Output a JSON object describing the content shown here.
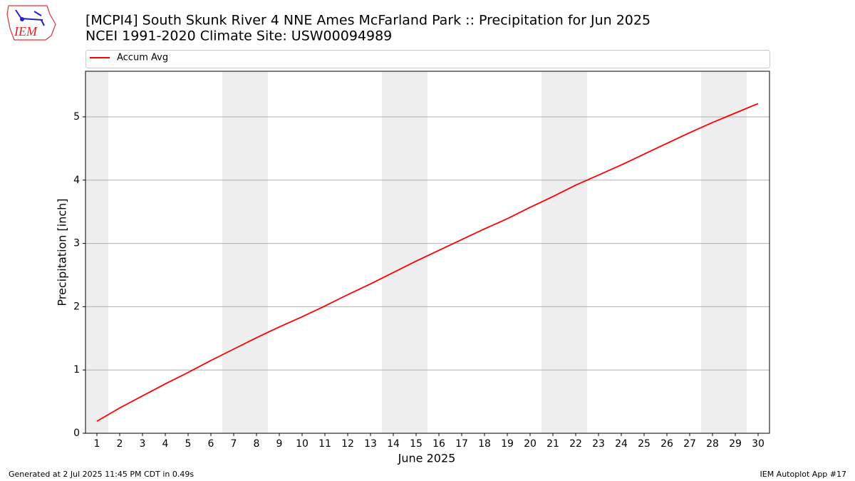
{
  "chart_data": {
    "type": "line",
    "title": "[MCPI4] South Skunk River 4 NNE Ames McFarland Park :: Precipitation for Jun 2025",
    "subtitle": "NCEI 1991-2020 Climate Site: USW00094989",
    "xlabel": "June 2025",
    "ylabel": "Precipitation [inch]",
    "x": [
      1,
      2,
      3,
      4,
      5,
      6,
      7,
      8,
      9,
      10,
      11,
      12,
      13,
      14,
      15,
      16,
      17,
      18,
      19,
      20,
      21,
      22,
      23,
      24,
      25,
      26,
      27,
      28,
      29,
      30
    ],
    "series": [
      {
        "name": "Accum Avg",
        "color": "#ff0000",
        "values": [
          0.19,
          0.4,
          0.59,
          0.78,
          0.96,
          1.15,
          1.33,
          1.51,
          1.68,
          1.84,
          2.01,
          2.19,
          2.36,
          2.54,
          2.72,
          2.89,
          3.06,
          3.23,
          3.39,
          3.57,
          3.74,
          3.92,
          4.08,
          4.24,
          4.41,
          4.58,
          4.75,
          4.91,
          5.06,
          5.21
        ]
      }
    ],
    "xlim": [
      0.5,
      30.5
    ],
    "ylim": [
      0,
      5.72
    ],
    "xticks": [
      1,
      2,
      3,
      4,
      5,
      6,
      7,
      8,
      9,
      10,
      11,
      12,
      13,
      14,
      15,
      16,
      17,
      18,
      19,
      20,
      21,
      22,
      23,
      24,
      25,
      26,
      27,
      28,
      29,
      30
    ],
    "yticks": [
      0,
      1,
      2,
      3,
      4,
      5
    ],
    "grid": true,
    "legend": "top",
    "shaded_days": [
      1,
      7,
      8,
      14,
      15,
      21,
      22,
      28,
      29
    ],
    "shade_color": "#eeeeee"
  },
  "footer": {
    "left": "Generated at 2 Jul 2025 11:45 PM CDT in 0.49s",
    "right": "IEM Autoplot App #17"
  },
  "logo": {
    "text": "IEM"
  }
}
